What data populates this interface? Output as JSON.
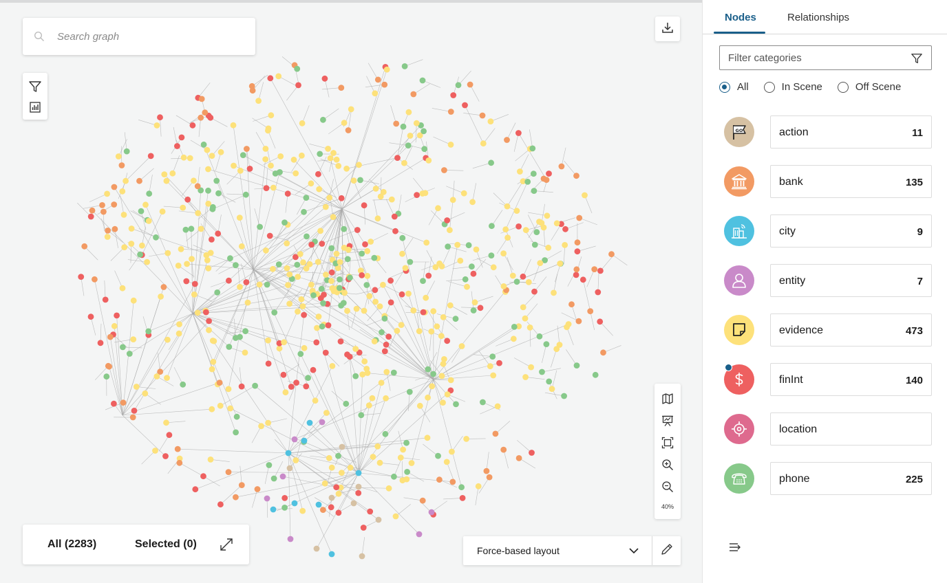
{
  "search": {
    "placeholder": "Search graph"
  },
  "zoom": {
    "level": "40%"
  },
  "counts": {
    "all_label": "All (2283)",
    "selected_label": "Selected (0)"
  },
  "layout": {
    "selected": "Force-based layout"
  },
  "panel": {
    "tabs": [
      {
        "label": "Nodes",
        "active": true
      },
      {
        "label": "Relationships",
        "active": false
      }
    ],
    "filter": {
      "placeholder": "Filter categories"
    },
    "scope_options": [
      {
        "label": "All",
        "checked": true
      },
      {
        "label": "In Scene",
        "checked": false
      },
      {
        "label": "Off Scene",
        "checked": false
      }
    ],
    "categories": [
      {
        "name": "action",
        "count": "11",
        "icon": "flag-go-icon",
        "color": "#d6c1a3"
      },
      {
        "name": "bank",
        "count": "135",
        "icon": "bank-building-icon",
        "color": "#f29a63"
      },
      {
        "name": "city",
        "count": "9",
        "icon": "city-building-icon",
        "color": "#4fc1e0"
      },
      {
        "name": "entity",
        "count": "7",
        "icon": "person-icon",
        "color": "#c98ac9"
      },
      {
        "name": "evidence",
        "count": "473",
        "icon": "sticky-note-icon",
        "color": "#fde17a"
      },
      {
        "name": "finInt",
        "count": "140",
        "icon": "dollar-icon",
        "color": "#ee6060"
      },
      {
        "name": "location",
        "count": "",
        "icon": "target-location-icon",
        "color": "#de6a8e"
      },
      {
        "name": "phone",
        "count": "225",
        "icon": "telephone-icon",
        "color": "#87c98a"
      }
    ]
  },
  "graph": {
    "node_colors": {
      "action": "#d6c1a3",
      "bank": "#f29a63",
      "city": "#4fc1e0",
      "entity": "#c98ac9",
      "evidence": "#fde17a",
      "finInt": "#ee6060",
      "phone": "#87c98a"
    },
    "edge_color": "#a9a9a9"
  }
}
